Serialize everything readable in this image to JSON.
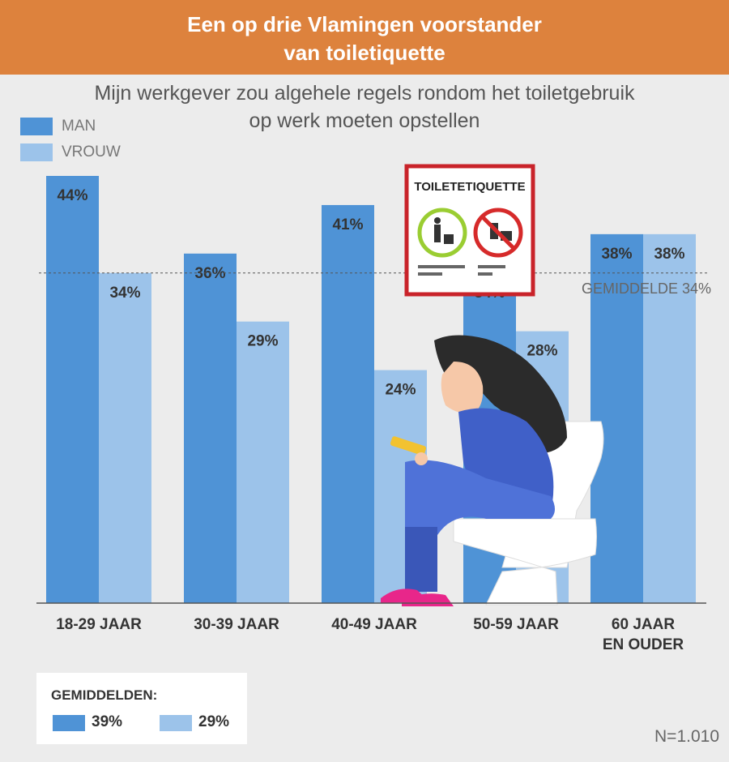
{
  "header": {
    "title_line1": "Een op drie Vlamingen voorstander",
    "title_line2": "van toiletiquette"
  },
  "subtitle": {
    "line1": "Mijn werkgever zou algehele regels rondom het toiletgebruik",
    "line2": "op werk moeten opstellen"
  },
  "legend": {
    "man_label": "MAN",
    "vrouw_label": "VROUW"
  },
  "colors": {
    "man": "#4f93d6",
    "vrouw": "#9cc3ea",
    "header": "#dd823d",
    "background": "#ececec"
  },
  "chart_data": {
    "type": "bar",
    "categories": [
      "18-29 JAAR",
      "30-39 JAAR",
      "40-49 JAAR",
      "50-59 JAAR",
      "60 JAAR EN OUDER"
    ],
    "series": [
      {
        "name": "MAN",
        "values": [
          44,
          36,
          41,
          34,
          38
        ]
      },
      {
        "name": "VROUW",
        "values": [
          34,
          29,
          24,
          28,
          38
        ]
      }
    ],
    "value_suffix": "%",
    "ylim": [
      0,
      44
    ],
    "reference_line": {
      "value": 34,
      "label": "GEMIDDELDE 34%"
    },
    "grid": false,
    "legend_position": "top-left"
  },
  "illustration": {
    "sign_title": "TOILETETIQUETTE"
  },
  "averages": {
    "title": "GEMIDDELDEN:",
    "man_value": "39%",
    "vrouw_value": "29%"
  },
  "footer": {
    "sample_size": "N=1.010"
  }
}
